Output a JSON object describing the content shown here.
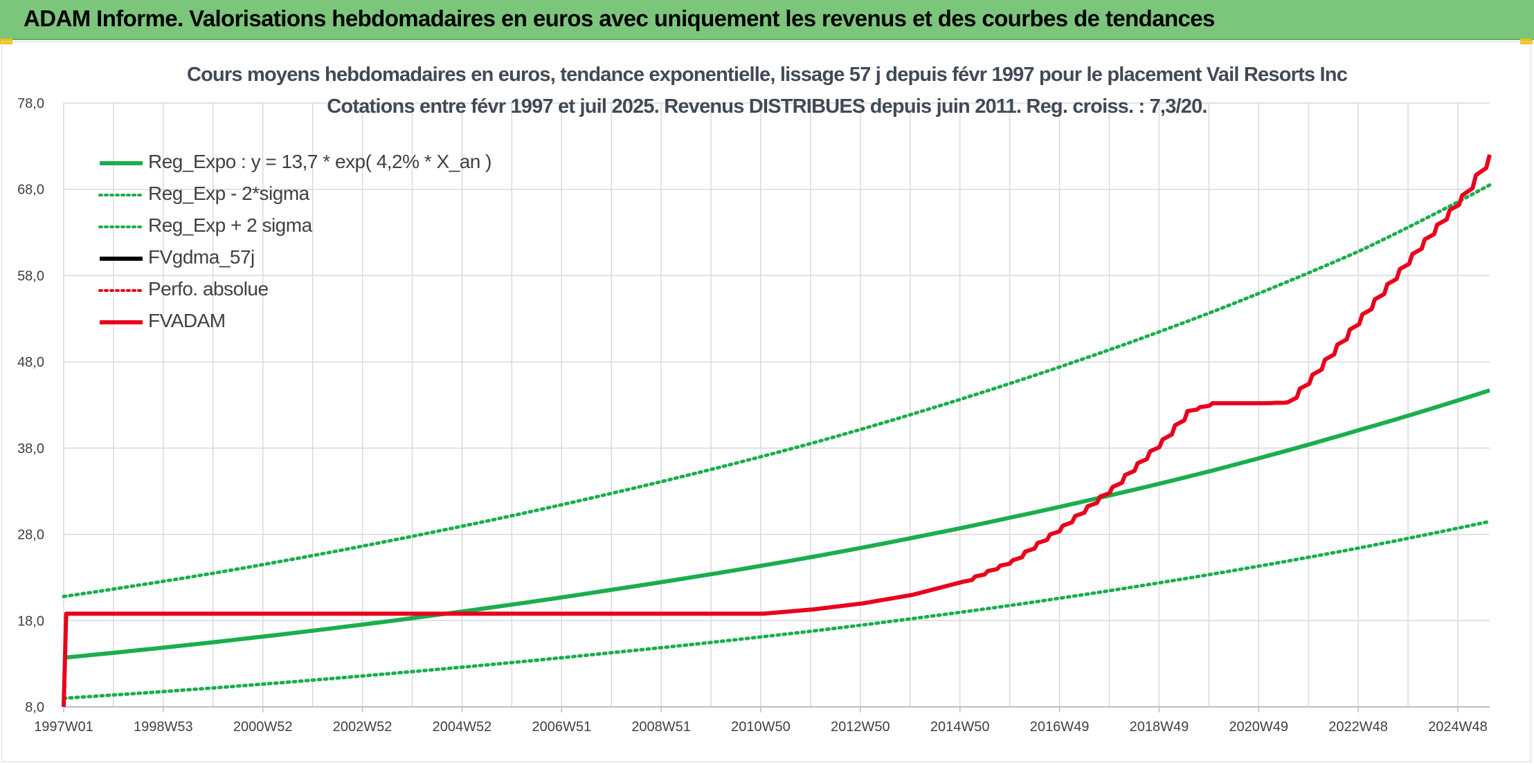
{
  "header": {
    "title": "ADAM Informe. Valorisations hebdomadaires en euros avec uniquement les revenus et des courbes de tendances"
  },
  "colors": {
    "header_bg": "#7cc67c",
    "green": "#1aae4c",
    "red": "#e8001c",
    "black": "#000000",
    "grid": "#d9d9d9"
  },
  "chart_data": {
    "type": "line",
    "title": "Cours moyens hebdomadaires en euros, tendance exponentielle, lissage 57 j depuis févr 1997 pour le placement Vail Resorts Inc",
    "subtitle": "Cotations entre févr 1997 et juil 2025. Revenus DISTRIBUES depuis juin 2011. Reg. croiss. : 7,3/20.",
    "xlabel": "",
    "ylabel": "",
    "x_ticks": [
      "1997W01",
      "1998W53",
      "2000W52",
      "2002W52",
      "2004W52",
      "2006W51",
      "2008W51",
      "2010W50",
      "2012W50",
      "2014W50",
      "2016W49",
      "2018W49",
      "2020W49",
      "2022W48",
      "2024W48"
    ],
    "y_ticks": [
      "8,0",
      "18,0",
      "28,0",
      "38,0",
      "48,0",
      "58,0",
      "68,0",
      "78,0"
    ],
    "ylim": [
      8,
      78
    ],
    "xlim": [
      1997.0,
      2025.55
    ],
    "grid": true,
    "legend_position": "top-left",
    "series": [
      {
        "name": "Reg_Expo : y = 13,7 * exp( 4,2% *  X_an )",
        "style": "solid",
        "color": "#1aae4c",
        "x": [
          1997.0,
          2000.0,
          2004.0,
          2008.0,
          2012.0,
          2016.0,
          2020.0,
          2023.0,
          2025.55
        ],
        "y": [
          13.7,
          15.5,
          18.3,
          21.6,
          25.4,
          30.0,
          35.4,
          40.2,
          44.7
        ]
      },
      {
        "name": "Reg_Exp - 2*sigma",
        "style": "dotted",
        "color": "#1aae4c",
        "x": [
          1997.0,
          2000.0,
          2004.0,
          2008.0,
          2012.0,
          2016.0,
          2020.0,
          2023.0,
          2025.55
        ],
        "y": [
          9.0,
          10.2,
          12.1,
          14.3,
          16.8,
          19.8,
          23.4,
          26.5,
          29.5
        ]
      },
      {
        "name": "Reg_Exp + 2 sigma",
        "style": "dotted",
        "color": "#1aae4c",
        "x": [
          1997.0,
          2000.0,
          2004.0,
          2008.0,
          2012.0,
          2016.0,
          2020.0,
          2023.0,
          2025.55
        ],
        "y": [
          20.8,
          23.5,
          27.8,
          32.8,
          38.6,
          45.6,
          53.8,
          61.0,
          68.5
        ]
      },
      {
        "name": "FVgdma_57j",
        "style": "solid",
        "color": "#000000",
        "x": [
          1997.0,
          1997.05,
          2011.0,
          2012.0,
          2013.0,
          2014.0,
          2015.0,
          2016.0,
          2017.0,
          2018.0,
          2019.0,
          2019.5,
          2020.0,
          2020.5,
          2021.0,
          2021.5,
          2022.0,
          2023.0,
          2024.0,
          2025.0,
          2025.55
        ],
        "y": [
          8.0,
          18.8,
          18.8,
          19.3,
          20.0,
          21.0,
          22.5,
          25.0,
          29.0,
          33.5,
          39.0,
          42.3,
          43.2,
          43.2,
          43.2,
          43.3,
          46.5,
          53.5,
          60.5,
          67.3,
          72.0
        ]
      },
      {
        "name": "Perfo. absolue",
        "style": "dotted",
        "color": "#e8001c",
        "x": [],
        "y": []
      },
      {
        "name": "FVADAM",
        "style": "solid",
        "color": "#e8001c",
        "x": [
          1997.0,
          1997.05,
          2011.0,
          2012.0,
          2013.0,
          2014.0,
          2015.0,
          2016.0,
          2017.0,
          2018.0,
          2019.0,
          2019.5,
          2020.0,
          2020.5,
          2021.0,
          2021.5,
          2022.0,
          2023.0,
          2024.0,
          2025.0,
          2025.55
        ],
        "y": [
          8.0,
          18.8,
          18.8,
          19.3,
          20.0,
          21.0,
          22.5,
          25.0,
          29.0,
          33.5,
          39.0,
          42.3,
          43.2,
          43.2,
          43.2,
          43.3,
          46.5,
          53.5,
          60.5,
          67.3,
          72.0
        ]
      }
    ]
  }
}
